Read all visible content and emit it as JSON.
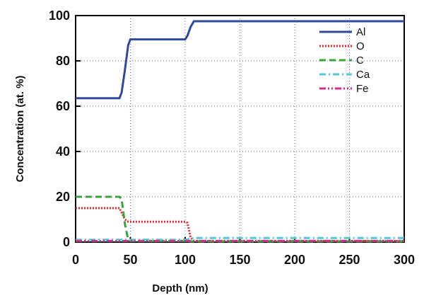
{
  "chart_data": {
    "type": "line",
    "xlabel": "Depth (nm)",
    "ylabel": "Concentration (at. %)",
    "x": [
      0,
      40,
      42,
      45,
      48,
      50,
      100,
      102,
      105,
      108,
      300
    ],
    "series": [
      {
        "name": "Al",
        "color": "#2f4a9c",
        "dash": "",
        "values": [
          63.5,
          63.5,
          66,
          76,
          87,
          89.5,
          89.5,
          91,
          95,
          97.5,
          97.5
        ]
      },
      {
        "name": "O",
        "color": "#e8282b",
        "dash": "2,2",
        "values": [
          15,
          15,
          13,
          10,
          9,
          9,
          9,
          8.5,
          2,
          0.5,
          0.5
        ]
      },
      {
        "name": "C",
        "color": "#3aa53a",
        "dash": "9,5",
        "values": [
          20,
          20,
          19,
          8,
          1,
          0.5,
          0.5,
          0.4,
          0.3,
          0.3,
          0.3
        ]
      },
      {
        "name": "Ca",
        "color": "#55c8d8",
        "dash": "9,4,2,4",
        "values": [
          1,
          1,
          1,
          1,
          1,
          1,
          1,
          1.2,
          1.6,
          1.8,
          1.8
        ]
      },
      {
        "name": "Fe",
        "color": "#d02f8f",
        "dash": "9,3,2,3,2,3",
        "values": [
          0.5,
          0.5,
          0.5,
          0.5,
          0.5,
          0.5,
          0.5,
          0.5,
          0.5,
          0.5,
          0.5
        ]
      }
    ],
    "xlim": [
      0,
      300
    ],
    "xticks": [
      0,
      50,
      100,
      150,
      200,
      250,
      300
    ],
    "ylim": [
      0,
      100
    ],
    "yticks": [
      0,
      20,
      40,
      60,
      80,
      100
    ],
    "grid": true,
    "legend": "upper right"
  }
}
